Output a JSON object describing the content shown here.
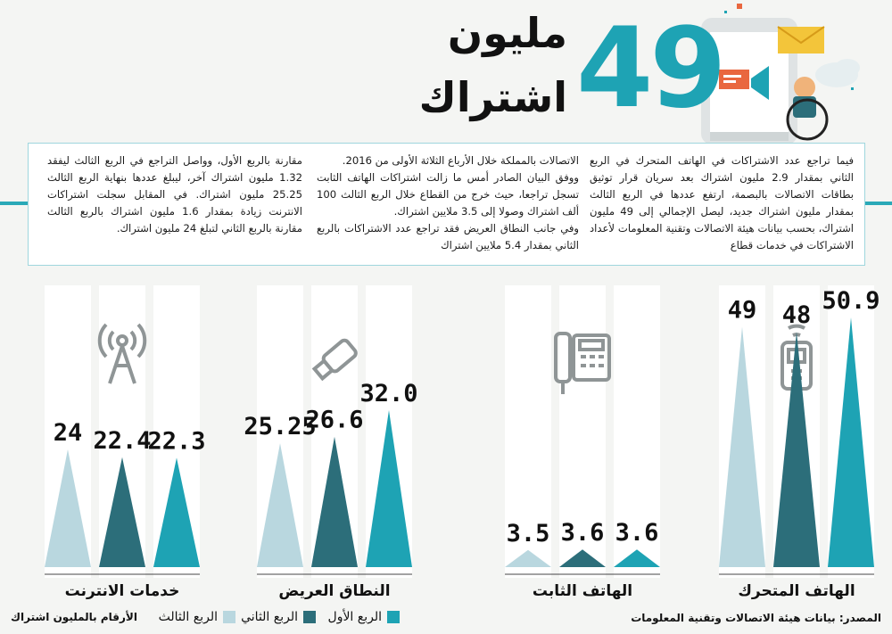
{
  "header": {
    "big_number": "49",
    "headline_line1": "مليون",
    "headline_line2": "اشتراك"
  },
  "article": {
    "col1": "فيما تراجع عدد الاشتراكات في الهاتف المتحرك في الربع الثاني بمقدار 2.9 مليون اشتراك بعد سريان قرار توثيق بطاقات الاتصالات بالبصمة، ارتفع عددها في الربع الثالث بمقدار مليون اشتراك جديد، ليصل الإجمالي إلى 49 مليون اشتراك، بحسب بيانات هيئة الاتصالات وتقنية المعلومات لأعداد الاشتراكات في خدمات قطاع",
    "col2a": "الاتصالات بالمملكة خلال الأرباع الثلاثة الأولى من 2016.",
    "col2b": "ووفق البيان الصادر أمس ما زالت اشتراكات الهاتف الثابت تسجل تراجعا، حيث خرج من القطاع خلال الربع الثالث 100 ألف اشتراك وصولا إلى 3.5 ملايين اشتراك.",
    "col2c": "وفي جانب النطاق العريض فقد تراجع عدد الاشتراكات بالربع الثاني بمقدار 5.4 ملايين اشتراك",
    "col3": "مقارنة بالربع الأول، وواصل التراجع في الربع الثالث ليفقد 1.32 مليون اشتراك آخر، ليبلغ عددها بنهاية الربع الثالث 25.25 مليون اشتراك. في المقابل سجلت اشتراكات الانترنت زيادة بمقدار 1.6 مليون اشتراك بالربع الثالث مقارنة بالربع الثاني لتبلغ 24 مليون اشتراك."
  },
  "chart_data": {
    "type": "bar",
    "categories": [
      "الهاتف المتحرك",
      "الهاتف الثابت",
      "النطاق العريض",
      "خدمات الانترنت"
    ],
    "category_icons": [
      "mobile-phone-icon",
      "landline-phone-icon",
      "usb-stick-icon",
      "antenna-tower-icon"
    ],
    "series": [
      {
        "name": "الربع الأول",
        "color": "#1ea3b4",
        "values": [
          50.9,
          3.6,
          32.0,
          22.3
        ],
        "labels": [
          "50.9",
          "3.6",
          "32.0",
          "22.3"
        ]
      },
      {
        "name": "الربع الثاني",
        "color": "#2c6e7a",
        "values": [
          48,
          3.6,
          26.6,
          22.4
        ],
        "labels": [
          "48",
          "3.6",
          "26.6",
          "22.4"
        ]
      },
      {
        "name": "الربع الثالث",
        "color": "#b9d7df",
        "values": [
          49,
          3.5,
          25.25,
          24
        ],
        "labels": [
          "49",
          "3.5",
          "25.25",
          "24"
        ]
      }
    ],
    "unit_note": "الأرقام بالمليون اشتراك",
    "source": "المصدر: بيانات هيئة الاتصالات وتقنية المعلومات"
  }
}
